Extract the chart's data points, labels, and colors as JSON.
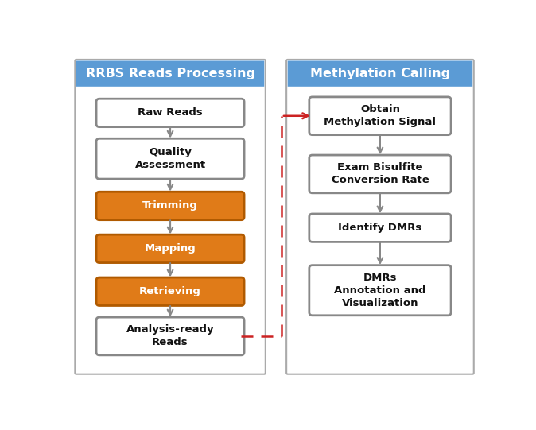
{
  "fig_width": 6.74,
  "fig_height": 5.41,
  "bg_color": "#ffffff",
  "header_color": "#5b9bd5",
  "header_text_color": "#ffffff",
  "border_color": "#aaaaaa",
  "left_title": "RRBS Reads Processing",
  "right_title": "Methylation Calling",
  "left_boxes": [
    {
      "label": "Raw Reads",
      "orange": false
    },
    {
      "label": "Quality\nAssessment",
      "orange": false
    },
    {
      "label": "Trimming",
      "orange": true
    },
    {
      "label": "Mapping",
      "orange": true
    },
    {
      "label": "Retrieving",
      "orange": true
    },
    {
      "label": "Analysis-ready\nReads",
      "orange": false
    }
  ],
  "right_boxes": [
    {
      "label": "Obtain\nMethylation Signal",
      "orange": false
    },
    {
      "label": "Exam Bisulfite\nConversion Rate",
      "orange": false
    },
    {
      "label": "Identify DMRs",
      "orange": false
    },
    {
      "label": "DMRs\nAnnotation and\nVisualization",
      "orange": false
    }
  ],
  "orange_color": "#e07b18",
  "orange_edge": "#b05a00",
  "white_box_edge": "#888888",
  "arrow_color": "#888888",
  "dashed_arrow_color": "#cc2222",
  "text_color_white": "#ffffff",
  "text_color_dark": "#111111",
  "font_size_title": 11.5,
  "font_size_box": 9.5
}
